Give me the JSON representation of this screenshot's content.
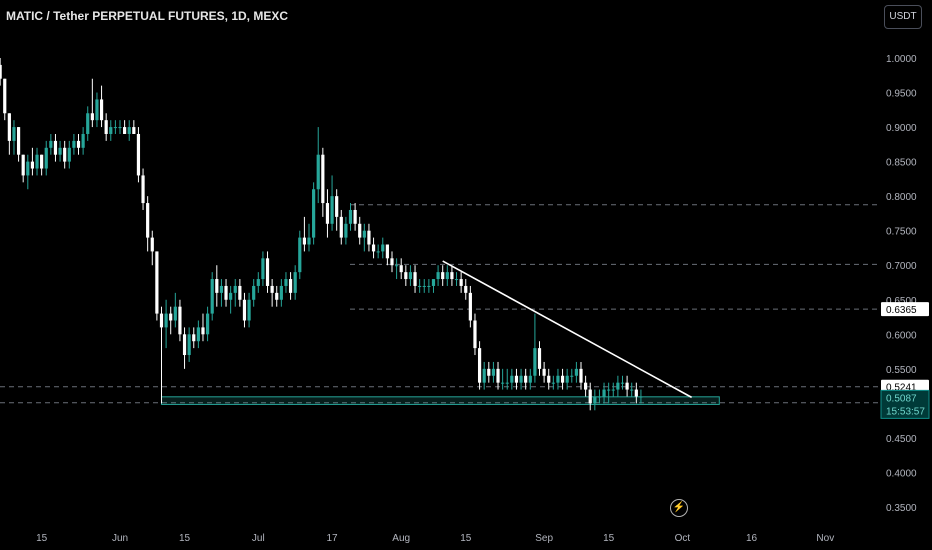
{
  "header": {
    "title": "MATIC / Tether PERPETUAL FUTURES, 1D, MEXC"
  },
  "toolbar": {
    "currency_label": "USDT"
  },
  "icons": {
    "snapshot": "lightning-bolt-icon"
  },
  "colors": {
    "background": "#000000",
    "up_candle": "#26a69a",
    "down_candle": "#ffffff",
    "trendline": "#ffffff",
    "support_zone": "#26a69a",
    "price_label_light": "#ffffff",
    "price_label_accent": "#0f8f8a",
    "axis_text": "#b2b5be"
  },
  "chart_data": {
    "type": "candlestick",
    "symbol": "MATIC / Tether PERPETUAL FUTURES",
    "interval": "1D",
    "exchange": "MEXC",
    "ylim": [
      0.3283,
      1.0445
    ],
    "y_ticks": [
      "1.0000",
      "0.9500",
      "0.9000",
      "0.8500",
      "0.8000",
      "0.7500",
      "0.7000",
      "0.6500",
      "0.6000",
      "0.5500",
      "0.5000",
      "0.4500",
      "0.4000",
      "0.3500"
    ],
    "x_ticks": [
      {
        "label": "15",
        "date": "2022-05-15"
      },
      {
        "label": "Jun",
        "date": "2022-06-01"
      },
      {
        "label": "15",
        "date": "2022-06-15"
      },
      {
        "label": "Jul",
        "date": "2022-07-01"
      },
      {
        "label": "17",
        "date": "2022-07-17"
      },
      {
        "label": "Aug",
        "date": "2022-08-01"
      },
      {
        "label": "15",
        "date": "2022-08-15"
      },
      {
        "label": "Sep",
        "date": "2022-09-01"
      },
      {
        "label": "15",
        "date": "2022-09-15"
      },
      {
        "label": "Oct",
        "date": "2022-10-01"
      },
      {
        "label": "16",
        "date": "2022-10-16"
      },
      {
        "label": "Nov",
        "date": "2022-11-01"
      }
    ],
    "first_candle_date": "2022-05-06",
    "candles": [
      [
        0.99,
        1.0,
        0.96,
        0.97
      ],
      [
        0.97,
        0.97,
        0.91,
        0.92
      ],
      [
        0.92,
        0.92,
        0.86,
        0.88
      ],
      [
        0.88,
        0.91,
        0.86,
        0.9
      ],
      [
        0.9,
        0.9,
        0.85,
        0.86
      ],
      [
        0.86,
        0.86,
        0.82,
        0.83
      ],
      [
        0.83,
        0.86,
        0.81,
        0.85
      ],
      [
        0.85,
        0.87,
        0.83,
        0.84
      ],
      [
        0.84,
        0.87,
        0.83,
        0.86
      ],
      [
        0.86,
        0.86,
        0.83,
        0.84
      ],
      [
        0.84,
        0.88,
        0.83,
        0.87
      ],
      [
        0.87,
        0.89,
        0.86,
        0.88
      ],
      [
        0.88,
        0.89,
        0.85,
        0.86
      ],
      [
        0.86,
        0.88,
        0.85,
        0.87
      ],
      [
        0.87,
        0.88,
        0.84,
        0.85
      ],
      [
        0.85,
        0.88,
        0.84,
        0.87
      ],
      [
        0.87,
        0.89,
        0.86,
        0.88
      ],
      [
        0.88,
        0.89,
        0.86,
        0.87
      ],
      [
        0.87,
        0.9,
        0.86,
        0.89
      ],
      [
        0.89,
        0.93,
        0.88,
        0.92
      ],
      [
        0.92,
        0.97,
        0.9,
        0.91
      ],
      [
        0.91,
        0.95,
        0.9,
        0.94
      ],
      [
        0.94,
        0.96,
        0.9,
        0.91
      ],
      [
        0.91,
        0.92,
        0.88,
        0.89
      ],
      [
        0.89,
        0.91,
        0.88,
        0.9
      ],
      [
        0.9,
        0.91,
        0.89,
        0.9
      ],
      [
        0.9,
        0.91,
        0.89,
        0.9
      ],
      [
        0.9,
        0.91,
        0.89,
        0.89
      ],
      [
        0.89,
        0.91,
        0.88,
        0.9
      ],
      [
        0.9,
        0.91,
        0.89,
        0.89
      ],
      [
        0.89,
        0.9,
        0.82,
        0.83
      ],
      [
        0.83,
        0.84,
        0.78,
        0.79
      ],
      [
        0.79,
        0.8,
        0.72,
        0.74
      ],
      [
        0.74,
        0.75,
        0.7,
        0.72
      ],
      [
        0.72,
        0.72,
        0.62,
        0.63
      ],
      [
        0.63,
        0.64,
        0.5,
        0.61
      ],
      [
        0.61,
        0.65,
        0.58,
        0.63
      ],
      [
        0.63,
        0.64,
        0.6,
        0.62
      ],
      [
        0.62,
        0.66,
        0.61,
        0.64
      ],
      [
        0.64,
        0.65,
        0.59,
        0.6
      ],
      [
        0.6,
        0.61,
        0.55,
        0.57
      ],
      [
        0.57,
        0.61,
        0.56,
        0.6
      ],
      [
        0.6,
        0.61,
        0.58,
        0.59
      ],
      [
        0.59,
        0.62,
        0.58,
        0.61
      ],
      [
        0.61,
        0.63,
        0.59,
        0.6
      ],
      [
        0.6,
        0.64,
        0.59,
        0.63
      ],
      [
        0.63,
        0.69,
        0.62,
        0.68
      ],
      [
        0.68,
        0.7,
        0.64,
        0.66
      ],
      [
        0.66,
        0.68,
        0.64,
        0.67
      ],
      [
        0.67,
        0.68,
        0.64,
        0.65
      ],
      [
        0.65,
        0.67,
        0.63,
        0.66
      ],
      [
        0.66,
        0.68,
        0.64,
        0.67
      ],
      [
        0.67,
        0.68,
        0.64,
        0.65
      ],
      [
        0.65,
        0.66,
        0.61,
        0.62
      ],
      [
        0.62,
        0.66,
        0.61,
        0.65
      ],
      [
        0.65,
        0.68,
        0.64,
        0.67
      ],
      [
        0.67,
        0.69,
        0.66,
        0.68
      ],
      [
        0.68,
        0.72,
        0.67,
        0.71
      ],
      [
        0.71,
        0.72,
        0.66,
        0.67
      ],
      [
        0.67,
        0.68,
        0.64,
        0.66
      ],
      [
        0.66,
        0.67,
        0.64,
        0.65
      ],
      [
        0.65,
        0.68,
        0.64,
        0.67
      ],
      [
        0.67,
        0.69,
        0.66,
        0.68
      ],
      [
        0.68,
        0.69,
        0.65,
        0.66
      ],
      [
        0.66,
        0.7,
        0.65,
        0.69
      ],
      [
        0.69,
        0.75,
        0.68,
        0.74
      ],
      [
        0.74,
        0.77,
        0.72,
        0.73
      ],
      [
        0.73,
        0.76,
        0.72,
        0.74
      ],
      [
        0.74,
        0.82,
        0.73,
        0.81
      ],
      [
        0.81,
        0.9,
        0.79,
        0.86
      ],
      [
        0.86,
        0.87,
        0.77,
        0.79
      ],
      [
        0.79,
        0.81,
        0.74,
        0.76
      ],
      [
        0.76,
        0.83,
        0.75,
        0.8
      ],
      [
        0.8,
        0.81,
        0.75,
        0.77
      ],
      [
        0.77,
        0.78,
        0.73,
        0.74
      ],
      [
        0.74,
        0.77,
        0.73,
        0.76
      ],
      [
        0.76,
        0.79,
        0.75,
        0.78
      ],
      [
        0.78,
        0.79,
        0.75,
        0.76
      ],
      [
        0.76,
        0.77,
        0.73,
        0.74
      ],
      [
        0.74,
        0.76,
        0.72,
        0.75
      ],
      [
        0.75,
        0.76,
        0.72,
        0.73
      ],
      [
        0.73,
        0.74,
        0.71,
        0.72
      ],
      [
        0.72,
        0.73,
        0.71,
        0.72
      ],
      [
        0.72,
        0.74,
        0.71,
        0.73
      ],
      [
        0.73,
        0.73,
        0.7,
        0.71
      ],
      [
        0.71,
        0.72,
        0.69,
        0.7
      ],
      [
        0.7,
        0.71,
        0.68,
        0.7
      ],
      [
        0.7,
        0.71,
        0.68,
        0.69
      ],
      [
        0.69,
        0.7,
        0.67,
        0.68
      ],
      [
        0.68,
        0.7,
        0.67,
        0.69
      ],
      [
        0.69,
        0.7,
        0.66,
        0.67
      ],
      [
        0.67,
        0.68,
        0.66,
        0.67
      ],
      [
        0.67,
        0.68,
        0.66,
        0.67
      ],
      [
        0.67,
        0.68,
        0.66,
        0.67
      ],
      [
        0.67,
        0.68,
        0.66,
        0.68
      ],
      [
        0.68,
        0.7,
        0.67,
        0.69
      ],
      [
        0.69,
        0.7,
        0.67,
        0.68
      ],
      [
        0.68,
        0.7,
        0.67,
        0.69
      ],
      [
        0.69,
        0.7,
        0.67,
        0.68
      ],
      [
        0.68,
        0.69,
        0.67,
        0.68
      ],
      [
        0.68,
        0.69,
        0.66,
        0.67
      ],
      [
        0.67,
        0.68,
        0.65,
        0.66
      ],
      [
        0.66,
        0.67,
        0.61,
        0.62
      ],
      [
        0.62,
        0.63,
        0.57,
        0.58
      ],
      [
        0.58,
        0.59,
        0.52,
        0.53
      ],
      [
        0.53,
        0.56,
        0.52,
        0.55
      ],
      [
        0.55,
        0.56,
        0.53,
        0.54
      ],
      [
        0.54,
        0.56,
        0.53,
        0.55
      ],
      [
        0.55,
        0.56,
        0.52,
        0.53
      ],
      [
        0.53,
        0.55,
        0.52,
        0.53
      ],
      [
        0.53,
        0.55,
        0.52,
        0.53
      ],
      [
        0.53,
        0.55,
        0.52,
        0.54
      ],
      [
        0.54,
        0.55,
        0.52,
        0.53
      ],
      [
        0.53,
        0.55,
        0.52,
        0.54
      ],
      [
        0.54,
        0.55,
        0.52,
        0.53
      ],
      [
        0.53,
        0.55,
        0.52,
        0.54
      ],
      [
        0.54,
        0.63,
        0.53,
        0.58
      ],
      [
        0.58,
        0.59,
        0.54,
        0.55
      ],
      [
        0.55,
        0.56,
        0.53,
        0.54
      ],
      [
        0.54,
        0.55,
        0.52,
        0.53
      ],
      [
        0.53,
        0.54,
        0.52,
        0.53
      ],
      [
        0.53,
        0.55,
        0.52,
        0.54
      ],
      [
        0.54,
        0.55,
        0.52,
        0.53
      ],
      [
        0.53,
        0.55,
        0.52,
        0.54
      ],
      [
        0.54,
        0.55,
        0.53,
        0.54
      ],
      [
        0.54,
        0.56,
        0.53,
        0.55
      ],
      [
        0.55,
        0.56,
        0.52,
        0.53
      ],
      [
        0.53,
        0.54,
        0.51,
        0.52
      ],
      [
        0.52,
        0.53,
        0.49,
        0.5
      ],
      [
        0.5,
        0.52,
        0.49,
        0.51
      ],
      [
        0.51,
        0.52,
        0.5,
        0.51
      ],
      [
        0.51,
        0.53,
        0.5,
        0.52
      ],
      [
        0.52,
        0.53,
        0.5,
        0.52
      ],
      [
        0.52,
        0.53,
        0.51,
        0.52
      ],
      [
        0.52,
        0.54,
        0.51,
        0.53
      ],
      [
        0.53,
        0.54,
        0.52,
        0.53
      ],
      [
        0.53,
        0.54,
        0.51,
        0.52
      ],
      [
        0.52,
        0.53,
        0.51,
        0.52
      ],
      [
        0.52,
        0.53,
        0.5,
        0.51
      ],
      [
        0.51,
        0.52,
        0.5,
        0.51
      ]
    ],
    "horizontal_levels": [
      0.7876,
      0.7013,
      0.6365,
      0.5241
    ],
    "trendline": {
      "start": {
        "date": "2022-08-10",
        "price": 0.7061
      },
      "end": {
        "date": "2022-10-03",
        "price": 0.5087
      }
    },
    "support_zone": {
      "start_date": "2022-06-10",
      "end_date": "2022-10-09",
      "low": 0.4985,
      "high": 0.5095
    },
    "dashed_line_price": 0.501,
    "current_price": "0.5087",
    "countdown": "15:53:57",
    "level_label": "0.5241",
    "level_label_2": "0.6365"
  }
}
